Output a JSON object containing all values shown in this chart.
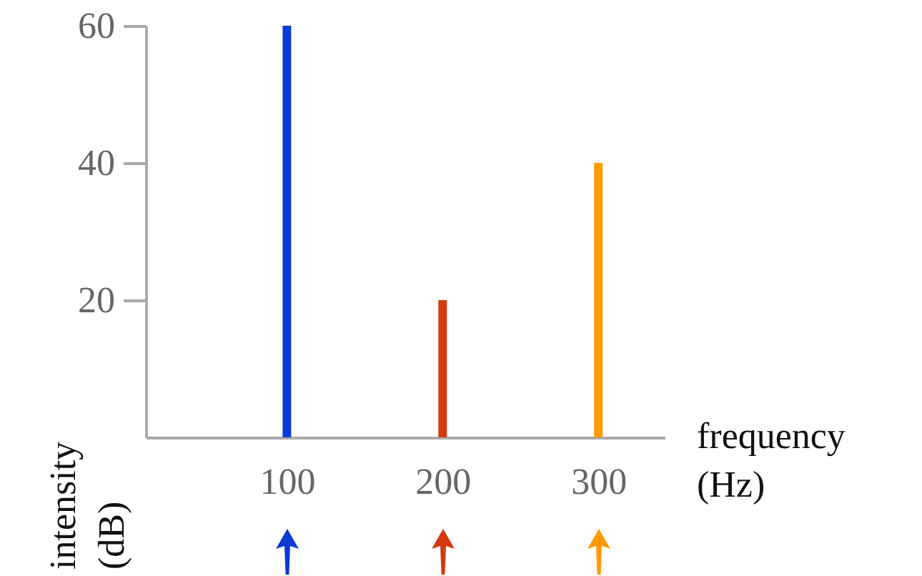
{
  "chart_data": {
    "type": "bar",
    "xlabel": "frequency (Hz)",
    "ylabel": "intensity (dB)",
    "x": [
      100,
      200,
      300
    ],
    "values": [
      60,
      20,
      40
    ],
    "colors": [
      "#0a3bd6",
      "#d43a10",
      "#ff9a00"
    ],
    "xlim": [
      14,
      338
    ],
    "xticks": [
      100,
      200,
      300
    ],
    "ylim": [
      0,
      60
    ],
    "yticks": [
      20,
      40,
      60
    ],
    "grid": false
  }
}
